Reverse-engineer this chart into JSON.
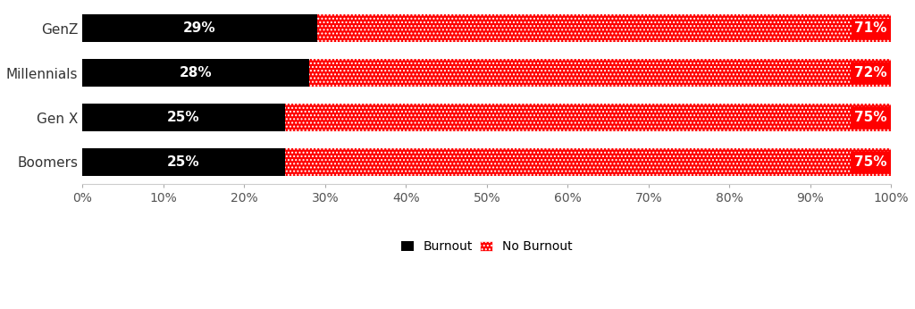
{
  "categories": [
    "GenZ",
    "Millennials",
    "Gen X",
    "Boomers"
  ],
  "burnout": [
    29,
    28,
    25,
    25
  ],
  "no_burnout": [
    71,
    72,
    75,
    75
  ],
  "burnout_color": "#000000",
  "no_burnout_color": "#FF0000",
  "bar_height": 0.62,
  "background_color": "#ffffff",
  "text_color_on_black": "#ffffff",
  "text_color_on_red": "#ffffff",
  "label_fontsize": 11,
  "tick_fontsize": 10,
  "legend_fontsize": 10,
  "xlim": [
    0,
    100
  ],
  "xticks": [
    0,
    10,
    20,
    30,
    40,
    50,
    60,
    70,
    80,
    90,
    100
  ],
  "xtick_labels": [
    "0%",
    "10%",
    "20%",
    "30%",
    "40%",
    "50%",
    "60%",
    "70%",
    "80%",
    "90%",
    "100%"
  ]
}
